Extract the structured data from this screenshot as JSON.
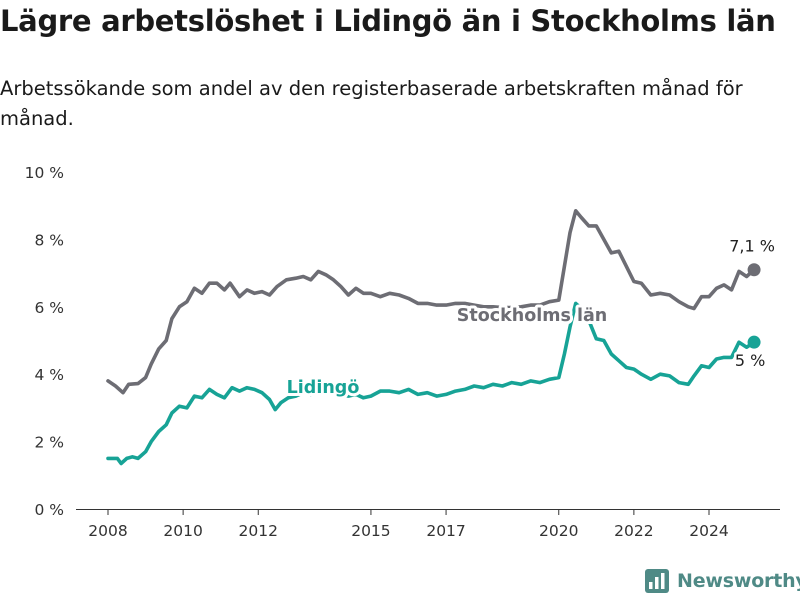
{
  "header": {
    "title": "Lägre arbetslöshet i Lidingö än i Stockholms län",
    "subtitle": "Arbetssökande som andel av den registerbaserade arbetskraften månad för månad."
  },
  "brand": {
    "name": "Newsworthy",
    "color": "#4f8a86",
    "icon": "bar-chart-logo-icon"
  },
  "chart_data": {
    "type": "line",
    "title": "Lägre arbetslöshet i Lidingö än i Stockholms län",
    "subtitle": "Arbetssökande som andel av den registerbaserade arbetskraften månad för månad.",
    "xlabel": "",
    "ylabel": "",
    "xlim": [
      2007.5,
      2026.5
    ],
    "ylim": [
      0,
      10
    ],
    "x_ticks": [
      2008,
      2010,
      2012,
      2015,
      2017,
      2020,
      2022,
      2024
    ],
    "x_tick_labels": [
      "2008",
      "2010",
      "2012",
      "2015",
      "2017",
      "2020",
      "2022",
      "2024"
    ],
    "y_ticks": [
      0,
      2,
      4,
      6,
      8,
      10
    ],
    "y_tick_labels": [
      "0 %",
      "2 %",
      "4 %",
      "6 %",
      "8 %",
      "10 %"
    ],
    "grid": false,
    "legend": "inline labels",
    "series": [
      {
        "name": "Stockholms län",
        "color": "#6d6d74",
        "end_label": "7,1 %",
        "points": [
          [
            2008.0,
            3.8
          ],
          [
            2008.2,
            3.65
          ],
          [
            2008.4,
            3.45
          ],
          [
            2008.55,
            3.7
          ],
          [
            2008.8,
            3.72
          ],
          [
            2009.0,
            3.9
          ],
          [
            2009.15,
            4.3
          ],
          [
            2009.35,
            4.75
          ],
          [
            2009.55,
            5.0
          ],
          [
            2009.7,
            5.65
          ],
          [
            2009.9,
            6.0
          ],
          [
            2010.1,
            6.15
          ],
          [
            2010.3,
            6.55
          ],
          [
            2010.5,
            6.4
          ],
          [
            2010.7,
            6.7
          ],
          [
            2010.9,
            6.7
          ],
          [
            2011.1,
            6.5
          ],
          [
            2011.25,
            6.7
          ],
          [
            2011.5,
            6.3
          ],
          [
            2011.7,
            6.5
          ],
          [
            2011.9,
            6.4
          ],
          [
            2012.1,
            6.45
          ],
          [
            2012.3,
            6.35
          ],
          [
            2012.5,
            6.6
          ],
          [
            2012.75,
            6.8
          ],
          [
            2013.0,
            6.85
          ],
          [
            2013.2,
            6.9
          ],
          [
            2013.4,
            6.8
          ],
          [
            2013.6,
            7.05
          ],
          [
            2013.8,
            6.95
          ],
          [
            2014.0,
            6.8
          ],
          [
            2014.2,
            6.6
          ],
          [
            2014.4,
            6.35
          ],
          [
            2014.6,
            6.55
          ],
          [
            2014.8,
            6.4
          ],
          [
            2015.0,
            6.4
          ],
          [
            2015.25,
            6.3
          ],
          [
            2015.5,
            6.4
          ],
          [
            2015.75,
            6.35
          ],
          [
            2016.0,
            6.25
          ],
          [
            2016.25,
            6.1
          ],
          [
            2016.5,
            6.1
          ],
          [
            2016.75,
            6.05
          ],
          [
            2017.0,
            6.05
          ],
          [
            2017.25,
            6.1
          ],
          [
            2017.5,
            6.1
          ],
          [
            2017.75,
            6.05
          ],
          [
            2018.0,
            6.0
          ],
          [
            2018.25,
            6.0
          ],
          [
            2018.5,
            5.98
          ],
          [
            2018.75,
            5.98
          ],
          [
            2019.0,
            6.0
          ],
          [
            2019.25,
            6.05
          ],
          [
            2019.5,
            6.05
          ],
          [
            2019.75,
            6.15
          ],
          [
            2020.0,
            6.2
          ],
          [
            2020.15,
            7.2
          ],
          [
            2020.3,
            8.2
          ],
          [
            2020.45,
            8.85
          ],
          [
            2020.6,
            8.65
          ],
          [
            2020.8,
            8.4
          ],
          [
            2021.0,
            8.4
          ],
          [
            2021.2,
            8.0
          ],
          [
            2021.4,
            7.6
          ],
          [
            2021.6,
            7.65
          ],
          [
            2021.8,
            7.2
          ],
          [
            2022.0,
            6.75
          ],
          [
            2022.2,
            6.7
          ],
          [
            2022.45,
            6.35
          ],
          [
            2022.7,
            6.4
          ],
          [
            2022.95,
            6.35
          ],
          [
            2023.2,
            6.15
          ],
          [
            2023.45,
            6.0
          ],
          [
            2023.6,
            5.95
          ],
          [
            2023.8,
            6.3
          ],
          [
            2024.0,
            6.3
          ],
          [
            2024.2,
            6.55
          ],
          [
            2024.4,
            6.65
          ],
          [
            2024.6,
            6.5
          ],
          [
            2024.8,
            7.05
          ],
          [
            2025.0,
            6.9
          ],
          [
            2025.2,
            7.1
          ]
        ]
      },
      {
        "name": "Lidingö",
        "color": "#17a396",
        "end_label": "5 %",
        "points": [
          [
            2008.0,
            1.5
          ],
          [
            2008.25,
            1.5
          ],
          [
            2008.35,
            1.35
          ],
          [
            2008.5,
            1.5
          ],
          [
            2008.65,
            1.55
          ],
          [
            2008.8,
            1.5
          ],
          [
            2009.0,
            1.7
          ],
          [
            2009.15,
            2.0
          ],
          [
            2009.35,
            2.3
          ],
          [
            2009.55,
            2.5
          ],
          [
            2009.7,
            2.85
          ],
          [
            2009.9,
            3.05
          ],
          [
            2010.1,
            3.0
          ],
          [
            2010.3,
            3.35
          ],
          [
            2010.5,
            3.3
          ],
          [
            2010.7,
            3.55
          ],
          [
            2010.9,
            3.4
          ],
          [
            2011.1,
            3.3
          ],
          [
            2011.3,
            3.6
          ],
          [
            2011.5,
            3.5
          ],
          [
            2011.7,
            3.6
          ],
          [
            2011.9,
            3.55
          ],
          [
            2012.1,
            3.45
          ],
          [
            2012.3,
            3.25
          ],
          [
            2012.45,
            2.95
          ],
          [
            2012.6,
            3.15
          ],
          [
            2012.8,
            3.3
          ],
          [
            2013.0,
            3.35
          ],
          [
            2013.2,
            3.45
          ],
          [
            2013.4,
            3.4
          ],
          [
            2013.6,
            3.5
          ],
          [
            2013.8,
            3.45
          ],
          [
            2014.0,
            3.45
          ],
          [
            2014.2,
            3.4
          ],
          [
            2014.4,
            3.35
          ],
          [
            2014.6,
            3.4
          ],
          [
            2014.8,
            3.3
          ],
          [
            2015.0,
            3.35
          ],
          [
            2015.25,
            3.5
          ],
          [
            2015.5,
            3.5
          ],
          [
            2015.75,
            3.45
          ],
          [
            2016.0,
            3.55
          ],
          [
            2016.25,
            3.4
          ],
          [
            2016.5,
            3.45
          ],
          [
            2016.75,
            3.35
          ],
          [
            2017.0,
            3.4
          ],
          [
            2017.25,
            3.5
          ],
          [
            2017.5,
            3.55
          ],
          [
            2017.75,
            3.65
          ],
          [
            2018.0,
            3.6
          ],
          [
            2018.25,
            3.7
          ],
          [
            2018.5,
            3.65
          ],
          [
            2018.75,
            3.75
          ],
          [
            2019.0,
            3.7
          ],
          [
            2019.25,
            3.8
          ],
          [
            2019.5,
            3.75
          ],
          [
            2019.75,
            3.85
          ],
          [
            2020.0,
            3.9
          ],
          [
            2020.15,
            4.6
          ],
          [
            2020.3,
            5.4
          ],
          [
            2020.45,
            6.1
          ],
          [
            2020.6,
            5.95
          ],
          [
            2020.8,
            5.6
          ],
          [
            2021.0,
            5.05
          ],
          [
            2021.2,
            5.0
          ],
          [
            2021.4,
            4.6
          ],
          [
            2021.6,
            4.4
          ],
          [
            2021.8,
            4.2
          ],
          [
            2022.0,
            4.15
          ],
          [
            2022.2,
            4.0
          ],
          [
            2022.45,
            3.85
          ],
          [
            2022.7,
            4.0
          ],
          [
            2022.95,
            3.95
          ],
          [
            2023.2,
            3.75
          ],
          [
            2023.45,
            3.7
          ],
          [
            2023.6,
            3.95
          ],
          [
            2023.8,
            4.25
          ],
          [
            2024.0,
            4.2
          ],
          [
            2024.2,
            4.45
          ],
          [
            2024.4,
            4.5
          ],
          [
            2024.6,
            4.5
          ],
          [
            2024.8,
            4.95
          ],
          [
            2025.0,
            4.8
          ],
          [
            2025.2,
            4.95
          ]
        ]
      }
    ]
  }
}
